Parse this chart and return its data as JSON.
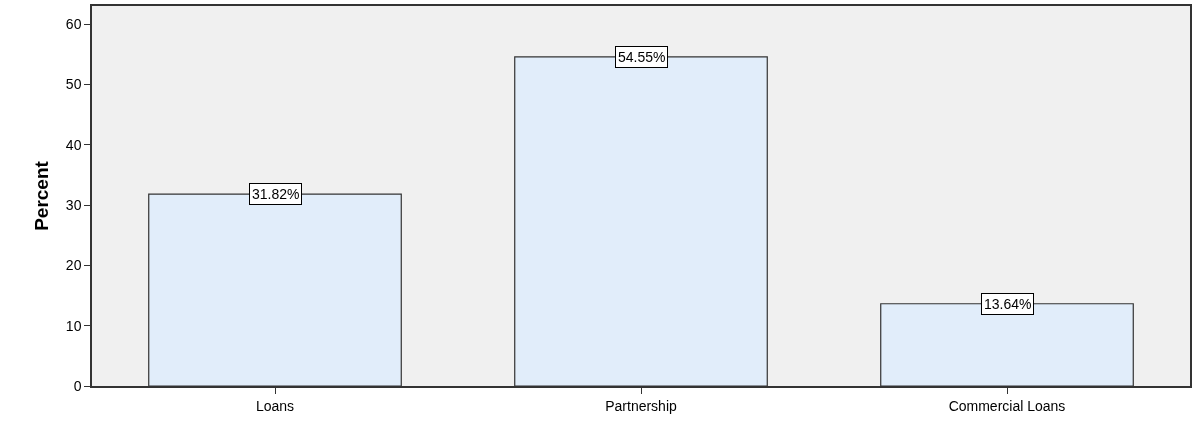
{
  "chart_data": {
    "type": "bar",
    "ylabel": "Percent",
    "categories": [
      "Loans",
      "Partnership",
      "Commercial Loans"
    ],
    "values": [
      31.82,
      54.55,
      13.64
    ],
    "value_labels": [
      "31.82%",
      "54.55%",
      "13.64%"
    ],
    "color": "#e1edfa",
    "ylim": [
      0,
      63
    ],
    "yticks": [
      0,
      10,
      20,
      30,
      40,
      50,
      60
    ],
    "grid": false
  }
}
